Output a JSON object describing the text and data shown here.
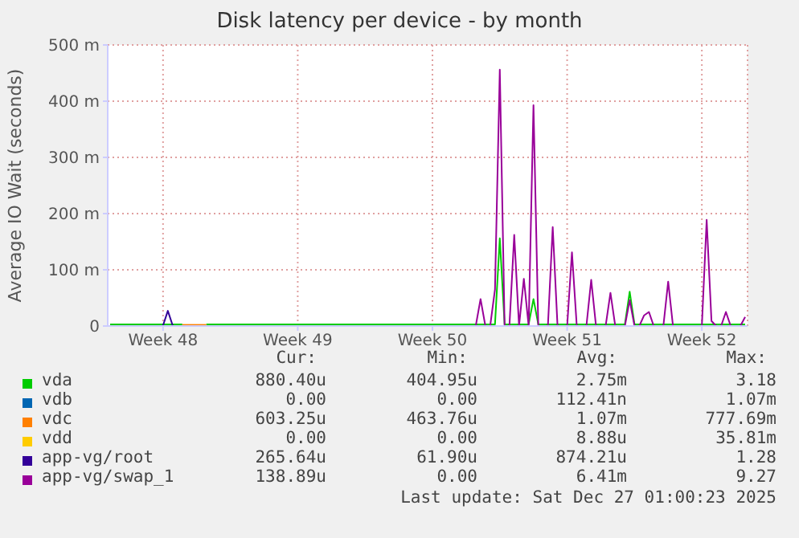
{
  "chart_data": {
    "type": "line",
    "title": "Disk latency per device - by month",
    "ylabel": "Average IO Wait (seconds)",
    "categories": [
      null,
      null,
      null,
      null,
      null,
      null,
      null,
      null,
      null,
      null,
      null,
      "Week 48",
      null,
      null,
      null,
      null,
      null,
      null,
      null,
      null,
      null,
      null,
      null,
      null,
      null,
      null,
      null,
      null,
      null,
      null,
      null,
      null,
      null,
      null,
      null,
      null,
      null,
      null,
      null,
      "Week 49",
      null,
      null,
      null,
      null,
      null,
      null,
      null,
      null,
      null,
      null,
      null,
      null,
      null,
      null,
      null,
      null,
      null,
      null,
      null,
      null,
      null,
      null,
      null,
      null,
      null,
      null,
      null,
      "Week 50",
      null,
      null,
      null,
      null,
      null,
      null,
      null,
      null,
      null,
      null,
      null,
      null,
      null,
      null,
      null,
      null,
      null,
      null,
      null,
      null,
      null,
      null,
      null,
      null,
      null,
      null,
      null,
      "Week 51",
      null,
      null,
      null,
      null,
      null,
      null,
      null,
      null,
      null,
      null,
      null,
      null,
      null,
      null,
      null,
      null,
      null,
      null,
      null,
      null,
      null,
      null,
      null,
      null,
      null,
      null,
      null,
      "Week 52",
      null,
      null,
      null,
      null,
      null,
      null,
      null,
      null,
      null
    ],
    "ylim": [
      0,
      500
    ],
    "yticks": [
      0,
      {
        "value": 100,
        "label": "100 m"
      },
      {
        "value": 200,
        "label": "200 m"
      },
      {
        "value": 300,
        "label": "300 m"
      },
      {
        "value": 400,
        "label": "400 m"
      },
      {
        "value": 500,
        "label": "500 m"
      }
    ],
    "grid": true,
    "legend": "bottom",
    "marker": "none",
    "line_style": "solid",
    "series": [
      {
        "name": "vda",
        "color": "#00cc00",
        "values": [
          3,
          3,
          3,
          3,
          3,
          3,
          3,
          3,
          3,
          3,
          3,
          3,
          3,
          3,
          3,
          3,
          null,
          null,
          null,
          null,
          3,
          3,
          3,
          3,
          3,
          3,
          3,
          3,
          3,
          3,
          3,
          3,
          3,
          3,
          3,
          3,
          3,
          3,
          3,
          3,
          3,
          3,
          3,
          3,
          3,
          3,
          3,
          3,
          3,
          3,
          3,
          3,
          3,
          3,
          3,
          3,
          3,
          3,
          3,
          3,
          3,
          3,
          3,
          3,
          3,
          3,
          3,
          3,
          3,
          3,
          3,
          3,
          3,
          3,
          3,
          3,
          3,
          3,
          3,
          3,
          3,
          156,
          3,
          3,
          3,
          3,
          3,
          3,
          48,
          3,
          3,
          3,
          3,
          3,
          3,
          3,
          3,
          3,
          3,
          3,
          3,
          3,
          3,
          3,
          3,
          3,
          3,
          3,
          61,
          3,
          3,
          3,
          3,
          3,
          3,
          3,
          3,
          3,
          3,
          3,
          3,
          3,
          3,
          3,
          3,
          3,
          3,
          3,
          3,
          3,
          3,
          3,
          3
        ]
      },
      {
        "name": "vdb",
        "color": "#0066b3",
        "values": [
          null,
          null,
          null,
          null,
          null,
          null,
          null,
          null,
          null,
          null,
          null,
          null,
          null,
          null,
          null,
          null,
          null,
          null,
          null,
          null,
          null,
          null,
          null,
          null,
          null,
          null,
          null,
          null,
          null,
          null,
          null,
          null,
          null,
          null,
          null,
          null,
          null,
          null,
          null,
          null,
          null,
          null,
          null,
          null,
          null,
          null,
          null,
          null,
          null,
          null,
          null,
          null,
          null,
          null,
          null,
          null,
          null,
          null,
          null,
          null,
          null,
          null,
          null,
          null,
          null,
          null,
          null,
          null,
          null,
          null,
          null,
          null,
          null,
          null,
          null,
          null,
          null,
          null,
          null,
          null,
          null,
          null,
          null,
          null,
          null,
          null,
          null,
          null,
          null,
          null,
          null,
          null,
          null,
          null,
          null,
          null,
          null,
          null,
          null,
          null,
          null,
          null,
          null,
          null,
          null,
          null,
          null,
          null,
          null,
          null,
          null,
          null,
          null,
          null,
          null,
          null,
          null,
          null,
          null,
          null,
          null,
          null,
          null,
          null,
          null,
          null,
          null,
          null,
          null,
          null,
          null,
          null,
          null
        ]
      },
      {
        "name": "vdc",
        "color": "#ff8000",
        "values": [
          null,
          null,
          null,
          null,
          null,
          null,
          null,
          null,
          null,
          null,
          null,
          null,
          null,
          null,
          null,
          2,
          2,
          2,
          2,
          2,
          2,
          null,
          null,
          null,
          null,
          null,
          null,
          null,
          null,
          null,
          null,
          null,
          null,
          null,
          null,
          null,
          null,
          null,
          null,
          null,
          null,
          null,
          null,
          null,
          null,
          null,
          null,
          null,
          null,
          null,
          null,
          null,
          null,
          null,
          null,
          null,
          null,
          null,
          null,
          null,
          null,
          null,
          null,
          null,
          null,
          null,
          null,
          null,
          null,
          null,
          null,
          null,
          null,
          null,
          null,
          null,
          null,
          null,
          null,
          null,
          null,
          null,
          null,
          null,
          null,
          null,
          null,
          null,
          null,
          null,
          null,
          null,
          null,
          null,
          null,
          null,
          null,
          null,
          null,
          null,
          null,
          null,
          null,
          null,
          null,
          null,
          null,
          null,
          null,
          null,
          null,
          null,
          null,
          null,
          null,
          null,
          null,
          null,
          null,
          null,
          null,
          null,
          null,
          null,
          null,
          null,
          null,
          null,
          null,
          null,
          null,
          null,
          null
        ]
      },
      {
        "name": "vdd",
        "color": "#ffcc00",
        "values": [
          null,
          null,
          null,
          null,
          null,
          null,
          null,
          null,
          null,
          null,
          null,
          null,
          null,
          null,
          null,
          null,
          null,
          null,
          null,
          null,
          null,
          null,
          null,
          null,
          null,
          null,
          null,
          null,
          null,
          null,
          null,
          null,
          null,
          null,
          null,
          null,
          null,
          null,
          null,
          null,
          null,
          null,
          null,
          null,
          null,
          null,
          null,
          null,
          null,
          null,
          null,
          null,
          null,
          null,
          null,
          null,
          null,
          null,
          null,
          null,
          null,
          null,
          null,
          null,
          null,
          null,
          null,
          null,
          null,
          null,
          null,
          null,
          null,
          null,
          null,
          null,
          null,
          null,
          null,
          null,
          null,
          null,
          null,
          null,
          null,
          null,
          null,
          null,
          null,
          null,
          null,
          null,
          null,
          null,
          null,
          null,
          null,
          null,
          null,
          null,
          null,
          null,
          null,
          null,
          null,
          null,
          null,
          null,
          null,
          null,
          null,
          null,
          null,
          null,
          null,
          null,
          null,
          null,
          null,
          null,
          null,
          null,
          null,
          null,
          null,
          null,
          null,
          null,
          null,
          null,
          null,
          null,
          null
        ]
      },
      {
        "name": "app-vg/root",
        "color": "#330099",
        "values": [
          null,
          null,
          null,
          null,
          null,
          null,
          null,
          null,
          null,
          null,
          null,
          1,
          27,
          1,
          null,
          null,
          null,
          null,
          null,
          null,
          null,
          null,
          null,
          null,
          null,
          null,
          null,
          null,
          null,
          null,
          null,
          null,
          null,
          null,
          null,
          null,
          null,
          null,
          null,
          null,
          null,
          null,
          null,
          null,
          null,
          null,
          null,
          null,
          null,
          null,
          null,
          null,
          null,
          null,
          null,
          null,
          null,
          null,
          null,
          null,
          null,
          null,
          null,
          null,
          null,
          null,
          null,
          null,
          null,
          null,
          null,
          null,
          null,
          null,
          null,
          null,
          null,
          null,
          null,
          null,
          null,
          null,
          null,
          null,
          null,
          null,
          null,
          null,
          null,
          null,
          null,
          null,
          null,
          null,
          null,
          null,
          null,
          null,
          null,
          null,
          null,
          null,
          null,
          null,
          null,
          null,
          null,
          null,
          null,
          null,
          null,
          null,
          null,
          null,
          null,
          null,
          null,
          null,
          null,
          null,
          null,
          null,
          null,
          null,
          null,
          null,
          null,
          null,
          null,
          null,
          null,
          null,
          null
        ]
      },
      {
        "name": "app-vg/swap_1",
        "color": "#990099",
        "values": [
          null,
          null,
          null,
          null,
          null,
          null,
          null,
          null,
          null,
          null,
          null,
          null,
          null,
          null,
          null,
          null,
          null,
          null,
          null,
          null,
          null,
          null,
          null,
          null,
          null,
          null,
          null,
          null,
          null,
          null,
          null,
          null,
          null,
          null,
          null,
          null,
          null,
          null,
          null,
          null,
          null,
          null,
          null,
          null,
          null,
          null,
          null,
          null,
          null,
          null,
          null,
          null,
          null,
          null,
          null,
          null,
          null,
          null,
          null,
          null,
          null,
          null,
          null,
          null,
          null,
          null,
          null,
          null,
          null,
          null,
          null,
          null,
          null,
          null,
          null,
          null,
          0,
          48,
          0,
          0,
          65,
          456,
          0,
          0,
          162,
          0,
          84,
          0,
          393,
          0,
          null,
          0,
          176,
          0,
          null,
          0,
          131,
          0,
          null,
          0,
          82,
          0,
          null,
          0,
          59,
          0,
          null,
          0,
          46,
          0,
          0,
          19,
          25,
          0,
          null,
          0,
          79,
          0,
          null,
          null,
          null,
          null,
          null,
          0,
          189,
          9,
          0,
          0,
          25,
          0,
          null,
          0,
          16
        ]
      }
    ],
    "annotations": [
      "Cur:",
      "Min:",
      "Avg:",
      "Max:",
      "880.40u",
      "404.95u",
      "2.75m",
      "3.18",
      "0.00",
      "0.00",
      "112.41n",
      "1.07m",
      "603.25u",
      "463.76u",
      "1.07m",
      "777.69m",
      "0.00",
      "0.00",
      "8.88u",
      "35.81m",
      "265.64u",
      "61.90u",
      "874.21u",
      "1.28",
      "138.89u",
      "0.00",
      "6.41m",
      "9.27",
      "Last update: Sat Dec 27 01:00:23 2025"
    ]
  }
}
